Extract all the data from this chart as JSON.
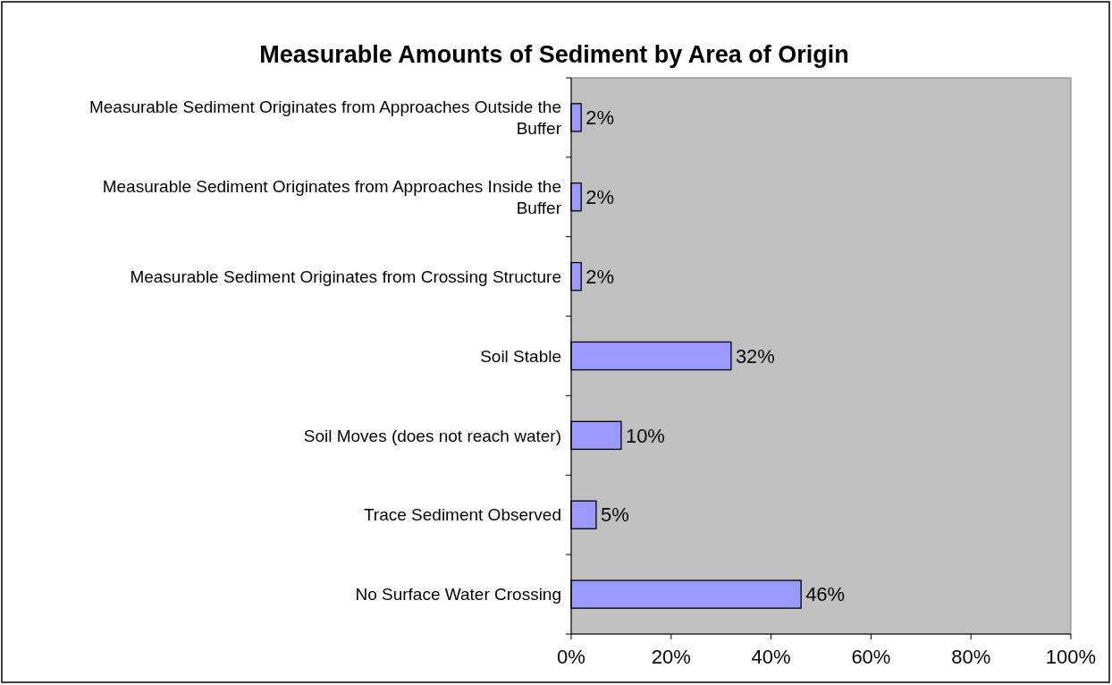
{
  "chart_data": {
    "type": "bar",
    "orientation": "horizontal",
    "title": "Measurable Amounts of Sediment by Area of Origin",
    "categories": [
      "Measurable Sediment Originates from Approaches Outside the Buffer",
      "Measurable Sediment Originates from Approaches Inside the Buffer",
      "Measurable Sediment Originates from Crossing Structure",
      "Soil Stable",
      "Soil Moves (does not reach water)",
      "Trace Sediment Observed",
      "No Surface Water Crossing"
    ],
    "values": [
      2,
      2,
      2,
      32,
      10,
      5,
      46
    ],
    "color": "#9999ff",
    "xlim": [
      0,
      100
    ],
    "xticks": [
      {
        "value": 0,
        "label": "0%"
      },
      {
        "value": 20,
        "label": "20%"
      },
      {
        "value": 40,
        "label": "40%"
      },
      {
        "value": 60,
        "label": "60%"
      },
      {
        "value": 80,
        "label": "80%"
      },
      {
        "value": 100,
        "label": "100%"
      }
    ],
    "value_labels": [
      "2%",
      "2%",
      "2%",
      "32%",
      "10%",
      "5%",
      "46%"
    ],
    "grid": false
  }
}
